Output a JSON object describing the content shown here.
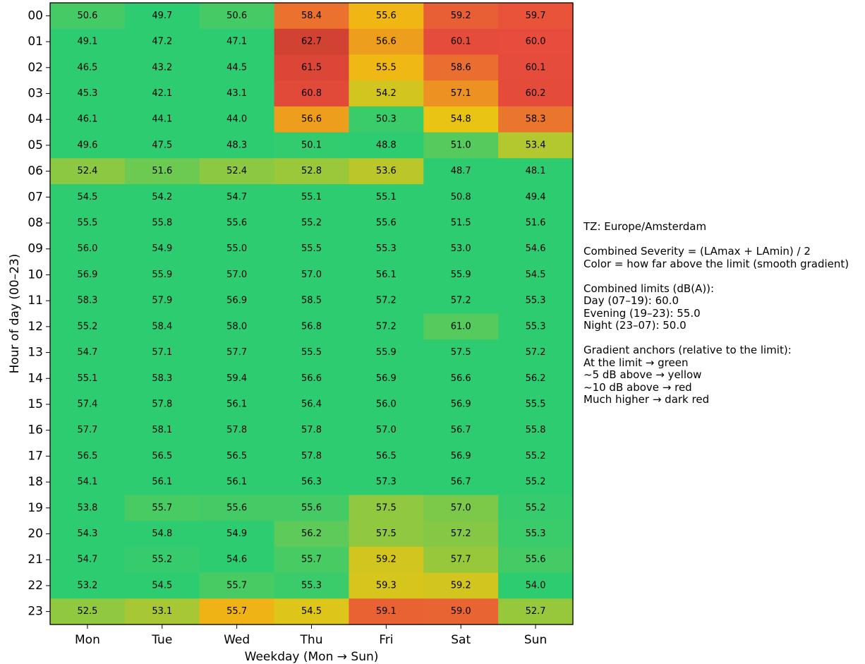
{
  "chart_data": {
    "type": "heatmap",
    "xlabel": "Weekday (Mon → Sun)",
    "ylabel": "Hour of day (00–23)",
    "x_categories": [
      "Mon",
      "Tue",
      "Wed",
      "Thu",
      "Fri",
      "Sat",
      "Sun"
    ],
    "y_categories": [
      "00",
      "01",
      "02",
      "03",
      "04",
      "05",
      "06",
      "07",
      "08",
      "09",
      "10",
      "11",
      "12",
      "13",
      "14",
      "15",
      "16",
      "17",
      "18",
      "19",
      "20",
      "21",
      "22",
      "23"
    ],
    "values": [
      [
        50.6,
        49.7,
        50.6,
        58.4,
        55.6,
        59.2,
        59.7
      ],
      [
        49.1,
        47.2,
        47.1,
        62.7,
        56.6,
        60.1,
        60.0
      ],
      [
        46.5,
        43.2,
        44.5,
        61.5,
        55.5,
        58.6,
        60.1
      ],
      [
        45.3,
        42.1,
        43.1,
        60.8,
        54.2,
        57.1,
        60.2
      ],
      [
        46.1,
        44.1,
        44.0,
        56.6,
        50.3,
        54.8,
        58.3
      ],
      [
        49.6,
        47.5,
        48.3,
        50.1,
        48.8,
        51.0,
        53.4
      ],
      [
        52.4,
        51.6,
        52.4,
        52.8,
        53.6,
        48.7,
        48.1
      ],
      [
        54.5,
        54.2,
        54.7,
        55.1,
        55.1,
        50.8,
        49.4
      ],
      [
        55.5,
        55.8,
        55.6,
        55.2,
        55.6,
        51.5,
        51.6
      ],
      [
        56.0,
        54.9,
        55.0,
        55.5,
        55.3,
        53.0,
        54.6
      ],
      [
        56.9,
        55.9,
        57.0,
        57.0,
        56.1,
        55.9,
        54.5
      ],
      [
        58.3,
        57.9,
        56.9,
        58.5,
        57.2,
        57.2,
        55.3
      ],
      [
        55.2,
        58.4,
        58.0,
        56.8,
        57.2,
        61.0,
        55.3
      ],
      [
        54.7,
        57.1,
        57.7,
        55.5,
        55.9,
        57.5,
        57.2
      ],
      [
        55.1,
        58.3,
        59.4,
        56.6,
        56.9,
        56.6,
        56.2
      ],
      [
        57.4,
        57.8,
        56.1,
        56.4,
        56.0,
        56.9,
        55.5
      ],
      [
        57.7,
        58.1,
        57.8,
        57.8,
        57.0,
        56.7,
        55.8
      ],
      [
        56.5,
        56.5,
        56.5,
        57.8,
        56.5,
        56.9,
        55.2
      ],
      [
        54.1,
        56.1,
        56.1,
        56.3,
        57.3,
        56.7,
        55.2
      ],
      [
        53.8,
        55.7,
        55.6,
        55.6,
        57.5,
        57.0,
        55.2
      ],
      [
        54.3,
        54.8,
        54.9,
        56.2,
        57.5,
        57.2,
        55.3
      ],
      [
        54.7,
        55.2,
        54.6,
        55.7,
        59.2,
        57.7,
        55.6
      ],
      [
        53.2,
        54.5,
        55.7,
        55.3,
        59.3,
        59.2,
        54.0
      ],
      [
        52.5,
        53.1,
        55.7,
        54.5,
        59.1,
        59.0,
        52.7
      ]
    ],
    "color_scale": {
      "stops": [
        {
          "excess_db": 0,
          "color": "#2ecc71"
        },
        {
          "excess_db": 5,
          "color": "#f1c40f"
        },
        {
          "excess_db": 10,
          "color": "#e74c3c"
        },
        {
          "excess_db": 15,
          "color": "#c0392b"
        }
      ]
    }
  },
  "notes": [
    [
      "TZ: Europe/Amsterdam"
    ],
    [
      "Combined Severity = (LAmax + LAmin) / 2",
      "Color = how far above the limit (smooth gradient)"
    ],
    [
      "Combined limits (dB(A)):",
      "Day (07–19): 60.0",
      "Evening (19–23): 55.0",
      "Night (23–07): 50.0"
    ],
    [
      "Gradient anchors (relative to the limit):",
      "At the limit → green",
      "~5 dB above → yellow",
      "~10 dB above → red",
      "Much higher → dark red"
    ]
  ]
}
